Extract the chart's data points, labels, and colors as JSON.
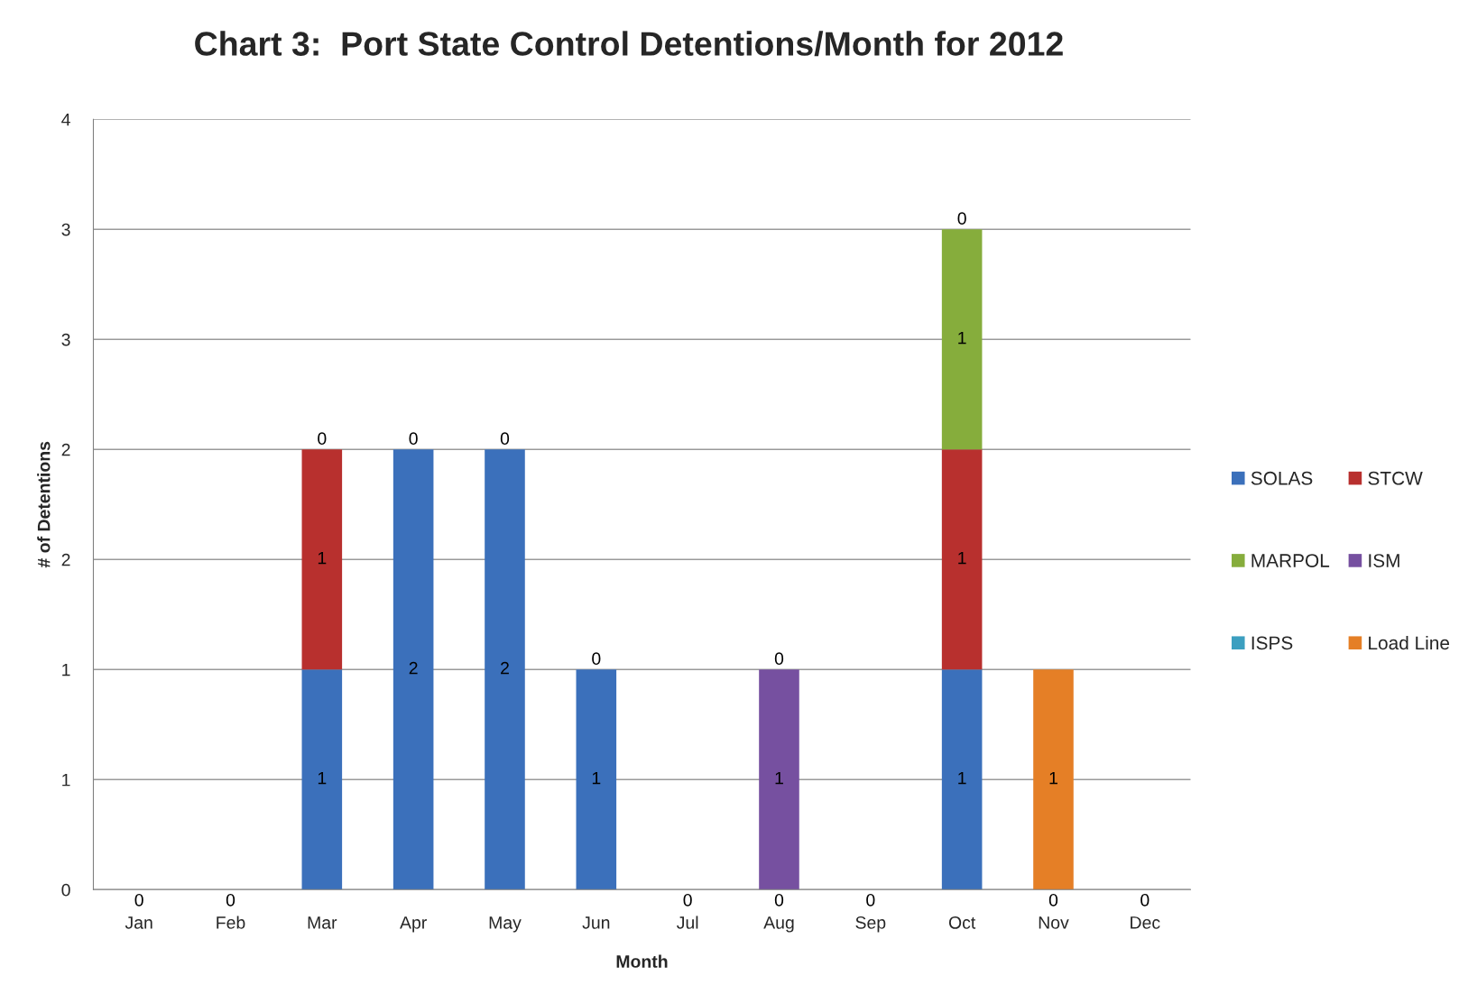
{
  "chart_data": {
    "type": "bar",
    "title": "Chart 3:  Port State Control Detentions/Month for 2012",
    "xlabel": "Month",
    "ylabel": "# of Detentions",
    "categories": [
      "Jan",
      "Feb",
      "Mar",
      "Apr",
      "May",
      "Jun",
      "Jul",
      "Aug",
      "Sep",
      "Oct",
      "Nov",
      "Dec"
    ],
    "series": [
      {
        "name": "SOLAS",
        "color": "#3b70bb",
        "values": [
          0,
          0,
          1,
          2,
          2,
          1,
          0,
          0,
          0,
          1,
          0,
          0
        ],
        "value_labels": [
          "0",
          "0",
          "1",
          "2",
          "2",
          "1",
          "0",
          null,
          "0",
          "1",
          null,
          "0"
        ]
      },
      {
        "name": "STCW",
        "color": "#b8302e",
        "values": [
          0,
          0,
          1,
          0,
          0,
          0,
          0,
          0,
          0,
          1,
          0,
          0
        ],
        "value_labels": [
          null,
          null,
          "1",
          null,
          null,
          null,
          null,
          null,
          null,
          "1",
          null,
          null
        ]
      },
      {
        "name": "MARPOL",
        "color": "#86ad3c",
        "values": [
          0,
          0,
          0,
          0,
          0,
          0,
          0,
          0,
          0,
          1,
          0,
          0
        ],
        "value_labels": [
          null,
          null,
          null,
          null,
          null,
          null,
          null,
          null,
          null,
          "1",
          null,
          null
        ]
      },
      {
        "name": "ISM",
        "color": "#7650a0",
        "values": [
          0,
          0,
          0,
          0,
          0,
          0,
          0,
          1,
          0,
          0,
          0,
          0
        ],
        "value_labels": [
          null,
          null,
          null,
          null,
          null,
          null,
          null,
          "1",
          null,
          null,
          null,
          null
        ]
      },
      {
        "name": "ISPS",
        "color": "#3c9fc0",
        "values": [
          0,
          0,
          0,
          0,
          0,
          0,
          0,
          0,
          0,
          0,
          0,
          0
        ],
        "value_labels": [
          null,
          null,
          null,
          null,
          null,
          null,
          null,
          null,
          null,
          null,
          null,
          null
        ]
      },
      {
        "name": "Load Line",
        "color": "#e57f26",
        "values": [
          0,
          0,
          0,
          0,
          0,
          0,
          0,
          0,
          0,
          0,
          1,
          0
        ],
        "value_labels": [
          null,
          null,
          "0",
          "0",
          "0",
          "0",
          null,
          "0",
          null,
          "0",
          "1",
          null
        ]
      }
    ],
    "annotations": [
      {
        "text": "0",
        "x": "Aug",
        "y": 0
      },
      {
        "text": "0",
        "x": "Nov",
        "y": 0
      }
    ],
    "stacked": true,
    "ylim": [
      0,
      3.5
    ],
    "yticks": [
      0,
      {
        "value": 0.5,
        "label": "1"
      },
      1,
      {
        "value": 1.5,
        "label": "2"
      },
      2,
      {
        "value": 2.5,
        "label": "3"
      },
      3,
      {
        "value": 3.5,
        "label": "4"
      }
    ],
    "grid": "y",
    "legend": "right"
  }
}
